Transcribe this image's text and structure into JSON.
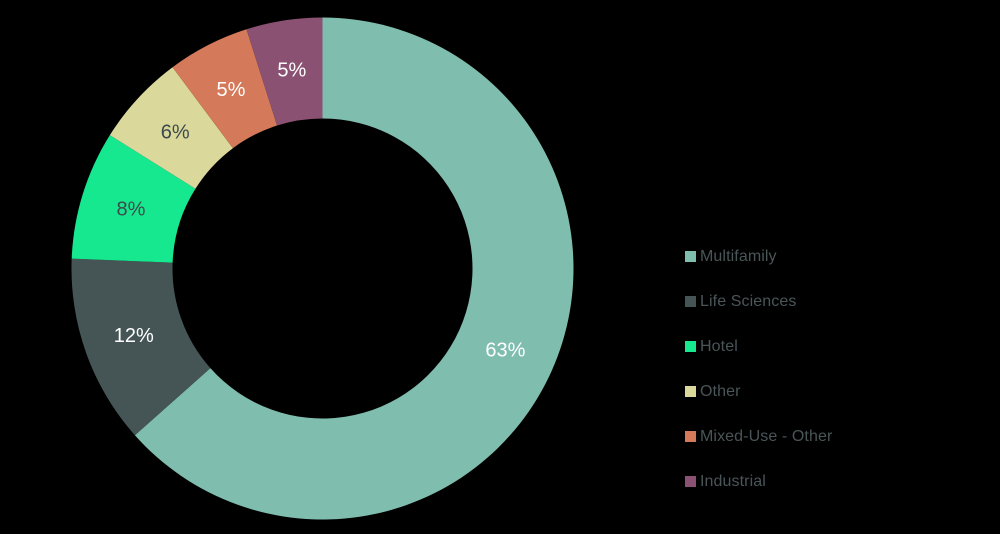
{
  "chart_data": {
    "type": "pie",
    "variant": "donut",
    "title": "",
    "start_angle_deg": 0,
    "direction": "clockwise",
    "center": [
      322.5,
      268.5
    ],
    "outer_radius": 251,
    "inner_radius": 150,
    "categories": [
      "Multifamily",
      "Life Sciences",
      "Hotel",
      "Other",
      "Mixed-Use - Other",
      "Industrial"
    ],
    "values": [
      63.5,
      12.2,
      8.3,
      5.9,
      5.3,
      4.9
    ],
    "labels": [
      "63%",
      "12%",
      "8%",
      "6%",
      "5%",
      "5%"
    ],
    "colors": [
      "#7fbdae",
      "#455556",
      "#16e890",
      "#dbd89c",
      "#d4795a",
      "#8a5173"
    ],
    "label_colors": [
      "#ffffff",
      "#ffffff",
      "#3c4a4c",
      "#3c4a4c",
      "#ffffff",
      "#ffffff"
    ],
    "legend_position": "right"
  },
  "legend": {
    "items": [
      {
        "label": "Multifamily",
        "color": "#7fbdae"
      },
      {
        "label": "Life Sciences",
        "color": "#455556"
      },
      {
        "label": "Hotel",
        "color": "#16e890"
      },
      {
        "label": "Other",
        "color": "#dbd89c"
      },
      {
        "label": "Mixed-Use - Other",
        "color": "#d4795a"
      },
      {
        "label": "Industrial",
        "color": "#8a5173"
      }
    ]
  },
  "background": "#000000"
}
